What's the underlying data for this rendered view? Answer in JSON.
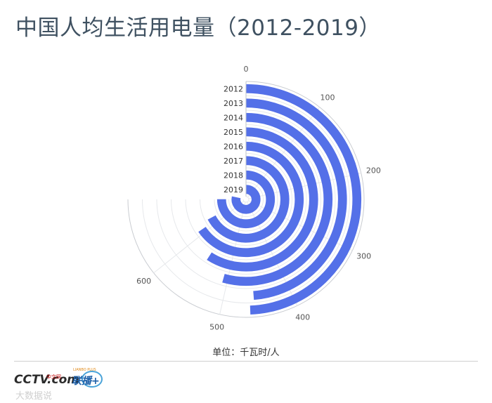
{
  "title": "中国人均生活用电量（2012-2019）",
  "unit_label": "单位：千瓦时/人",
  "logos": {
    "cctv_text": "CCTV.com",
    "cctv_small": "中文网",
    "lianbo_text": "联播+",
    "lianbo_small": "LIANBO PLUS"
  },
  "watermark": "大数据说",
  "chart_data": {
    "type": "bar",
    "subtype": "radial-bar",
    "categories": [
      "2012",
      "2013",
      "2014",
      "2015",
      "2016",
      "2017",
      "2018",
      "2019"
    ],
    "values": [
      461,
      455,
      508,
      552,
      611,
      628,
      701,
      732
    ],
    "angle_axis": {
      "min": 0,
      "max": 700,
      "ticks": [
        0,
        100,
        200,
        300,
        400,
        500,
        600
      ]
    },
    "radius_axis_labels": [
      "2012",
      "2013",
      "2014",
      "2015",
      "2016",
      "2017",
      "2018",
      "2019"
    ],
    "bar_color": "#5470e8",
    "grid": true
  }
}
